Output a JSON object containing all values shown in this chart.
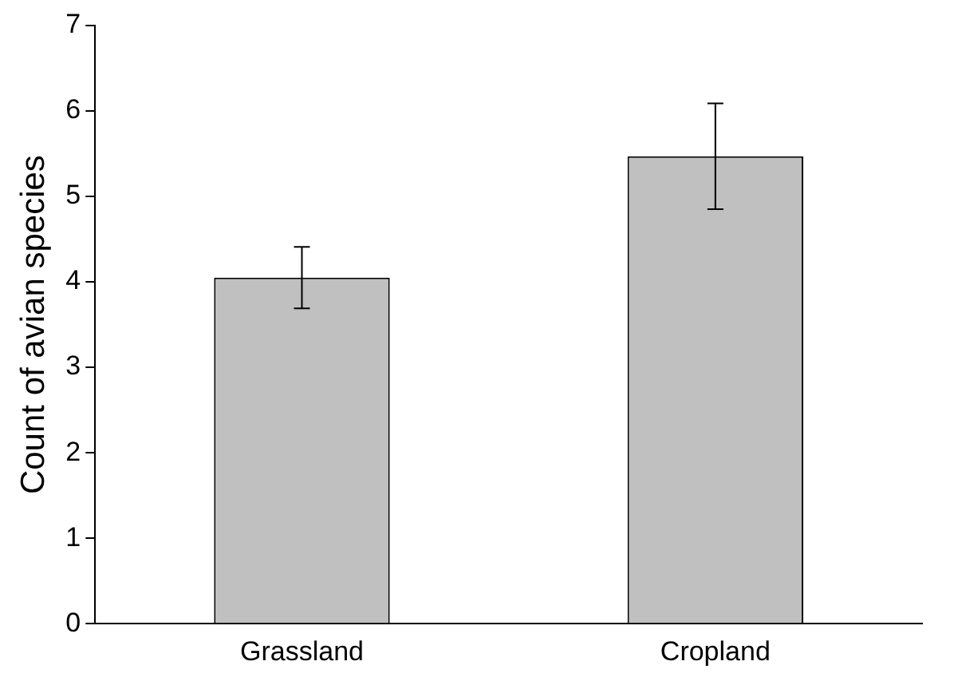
{
  "chart_data": {
    "type": "bar",
    "ylabel": "Count of avian species",
    "categories": [
      "Grassland",
      "Cropland"
    ],
    "values": [
      4.05,
      5.47
    ],
    "errors": [
      0.36,
      0.62
    ],
    "color": "#c0c0c0",
    "ylim": [
      0,
      7
    ],
    "yticks": [
      0,
      1,
      2,
      3,
      4,
      5,
      6,
      7
    ],
    "grid": false,
    "legend": false
  }
}
